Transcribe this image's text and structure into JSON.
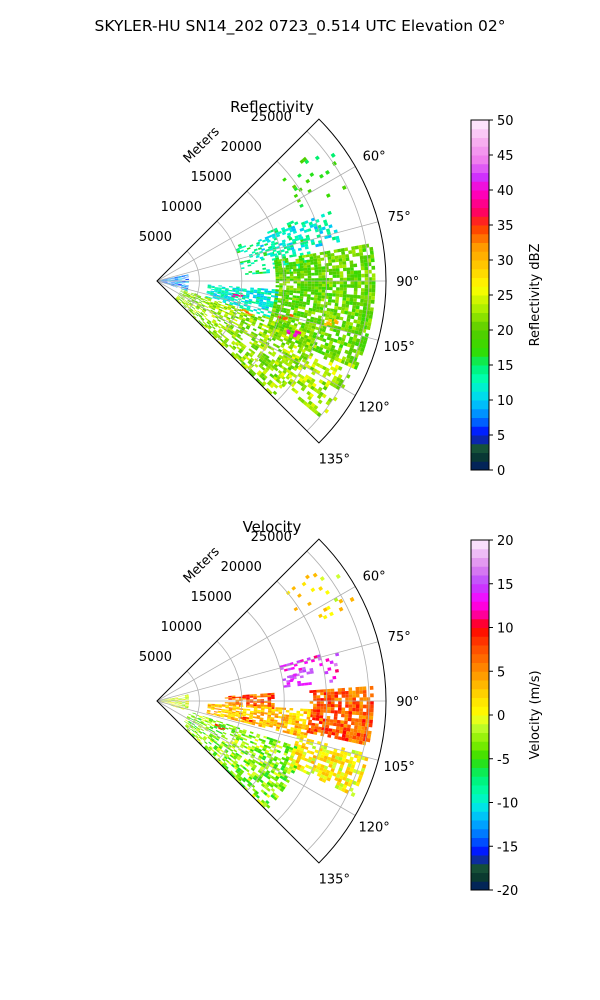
{
  "figure": {
    "suptitle": "SKYLER-HU  SN14_202  0723_0.514 UTC Elevation 02°"
  },
  "chart_data": [
    {
      "type": "heatmap",
      "projection": "polar sector (PPI)",
      "title": "Reflectivity",
      "range_axis_label": "Meters",
      "theta_min_deg": 45,
      "theta_max_deg": 135,
      "rmax": 27000,
      "range_ticks": [
        5000,
        10000,
        15000,
        20000,
        25000
      ],
      "angle_ticks": [
        60,
        75,
        90,
        105,
        120,
        135
      ],
      "grid": true,
      "colorbar": {
        "label": "Reflectivity dBZ",
        "min": 0,
        "max": 50,
        "ticks": [
          0,
          5,
          10,
          15,
          20,
          25,
          30,
          35,
          40,
          45,
          50
        ],
        "stops": [
          [
            0,
            "#001a6a"
          ],
          [
            2,
            "#0a3a30"
          ],
          [
            3.5,
            "#1a5a3a"
          ],
          [
            5,
            "#0000ff"
          ],
          [
            7,
            "#0066ff"
          ],
          [
            9,
            "#00b4ff"
          ],
          [
            11,
            "#00e5e5"
          ],
          [
            13,
            "#00ffb0"
          ],
          [
            15,
            "#00f070"
          ],
          [
            17,
            "#33dd00"
          ],
          [
            20,
            "#55cc00"
          ],
          [
            23,
            "#aaee00"
          ],
          [
            26,
            "#ffff00"
          ],
          [
            29,
            "#ffcc00"
          ],
          [
            32,
            "#ff9900"
          ],
          [
            35,
            "#ff3300"
          ],
          [
            37,
            "#ff0066"
          ],
          [
            40,
            "#ff00cc"
          ],
          [
            42,
            "#cc33ff"
          ],
          [
            44,
            "#ee77ee"
          ],
          [
            47,
            "#f7b0f0"
          ],
          [
            50,
            "#fff0ff"
          ]
        ]
      },
      "echo_regions": [
        {
          "r": [
            6000,
            14000
          ],
          "theta": [
            94,
            108
          ],
          "value": 12,
          "density": 0.7
        },
        {
          "r": [
            10000,
            18000
          ],
          "theta": [
            66,
            86
          ],
          "value": 14,
          "density": 0.28
        },
        {
          "r": [
            12000,
            22000
          ],
          "theta": [
            68,
            78
          ],
          "value": 12,
          "density": 0.35
        },
        {
          "r": [
            14000,
            25500
          ],
          "theta": [
            80,
            114
          ],
          "value": 20,
          "density": 0.78
        },
        {
          "r": [
            3000,
            19000
          ],
          "theta": [
            108,
            135
          ],
          "value": 22,
          "density": 0.55
        },
        {
          "r": [
            17000,
            25000
          ],
          "theta": [
            112,
            130
          ],
          "value": 23,
          "density": 0.45
        },
        {
          "r": [
            19000,
            26000
          ],
          "theta": [
            50,
            64
          ],
          "value": 18,
          "density": 0.08
        },
        {
          "r": [
            0,
            3500
          ],
          "theta": [
            78,
            108
          ],
          "value": 8,
          "density": 0.6
        }
      ],
      "hotspots": [
        {
          "r": 9500,
          "theta": 100,
          "value": 38
        },
        {
          "r": 17000,
          "theta": 110,
          "value": 40
        },
        {
          "r": 15500,
          "theta": 105,
          "value": 34
        },
        {
          "r": 11000,
          "theta": 109,
          "value": 33
        },
        {
          "r": 21000,
          "theta": 103,
          "value": 30
        }
      ]
    },
    {
      "type": "heatmap",
      "projection": "polar sector (PPI)",
      "title": "Velocity",
      "range_axis_label": "Meters",
      "theta_min_deg": 45,
      "theta_max_deg": 135,
      "rmax": 27000,
      "range_ticks": [
        5000,
        10000,
        15000,
        20000,
        25000
      ],
      "angle_ticks": [
        60,
        75,
        90,
        105,
        120,
        135
      ],
      "grid": true,
      "colorbar": {
        "label": "Velocity (m/s)",
        "min": -20,
        "max": 20,
        "ticks": [
          -20,
          -15,
          -10,
          -5,
          0,
          5,
          10,
          15,
          20
        ],
        "stops": [
          [
            -20,
            "#001a6a"
          ],
          [
            -18.5,
            "#0a3a30"
          ],
          [
            -17,
            "#1a5a3a"
          ],
          [
            -16,
            "#0000ff"
          ],
          [
            -14,
            "#0066ff"
          ],
          [
            -12,
            "#00b4ff"
          ],
          [
            -10.5,
            "#00e5e5"
          ],
          [
            -9,
            "#00ffb0"
          ],
          [
            -7,
            "#00f070"
          ],
          [
            -5,
            "#33dd00"
          ],
          [
            -3,
            "#88ee00"
          ],
          [
            -1,
            "#ccff33"
          ],
          [
            0,
            "#ffff00"
          ],
          [
            2,
            "#ffdd00"
          ],
          [
            4,
            "#ffaa00"
          ],
          [
            6,
            "#ff7700"
          ],
          [
            8,
            "#ff4400"
          ],
          [
            10,
            "#ff0000"
          ],
          [
            11.5,
            "#ff0099"
          ],
          [
            13,
            "#ff00ff"
          ],
          [
            15,
            "#bb44ff"
          ],
          [
            17,
            "#dd88ee"
          ],
          [
            20,
            "#fff0ff"
          ]
        ]
      },
      "echo_regions": [
        {
          "r": [
            8000,
            13500
          ],
          "theta": [
            86,
            94
          ],
          "value": 7,
          "density": 0.7
        },
        {
          "r": [
            18000,
            25500
          ],
          "theta": [
            86,
            102
          ],
          "value": 7,
          "density": 0.78
        },
        {
          "r": [
            6000,
            18000
          ],
          "theta": [
            93,
            104
          ],
          "value": 3,
          "density": 0.7
        },
        {
          "r": [
            15000,
            22000
          ],
          "theta": [
            74,
            84
          ],
          "value": 14,
          "density": 0.35
        },
        {
          "r": [
            4000,
            18000
          ],
          "theta": [
            108,
            135
          ],
          "value": -3,
          "density": 0.55
        },
        {
          "r": [
            17000,
            25500
          ],
          "theta": [
            104,
            116
          ],
          "value": 1,
          "density": 0.65
        },
        {
          "r": [
            19000,
            26000
          ],
          "theta": [
            50,
            64
          ],
          "value": 1,
          "density": 0.08
        },
        {
          "r": [
            0,
            3500
          ],
          "theta": [
            78,
            108
          ],
          "value": -1,
          "density": 0.5
        }
      ],
      "hotspots": [
        {
          "r": 10500,
          "theta": 101,
          "value": 9
        },
        {
          "r": 8000,
          "theta": 112,
          "value": 8
        },
        {
          "r": 16000,
          "theta": 80,
          "value": 15
        }
      ]
    }
  ]
}
